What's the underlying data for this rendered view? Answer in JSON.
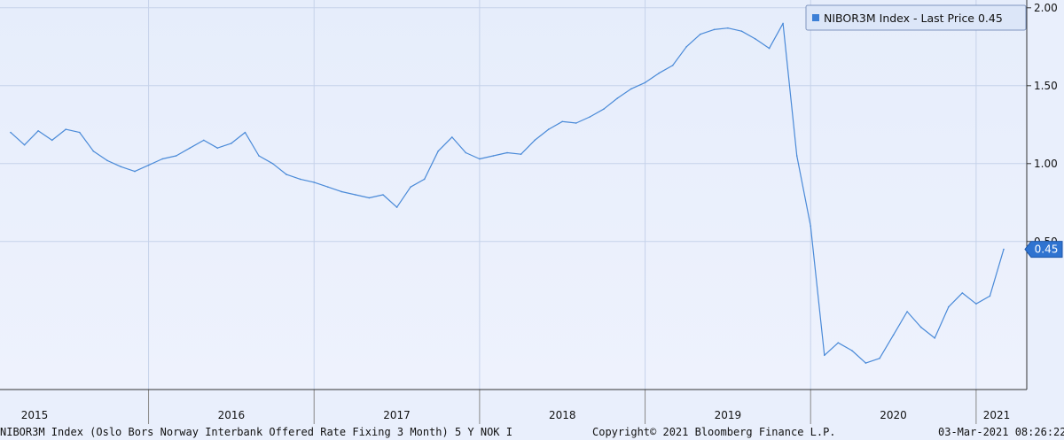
{
  "footer": {
    "description": "NIBOR3M Index (Oslo Bors Norway Interbank Offered Rate Fixing 3 Month) 5 Y NOK I",
    "copyright": "Copyright© 2021 Bloomberg Finance L.P.",
    "timestamp": "03-Mar-2021 08:26:22"
  },
  "chart_data": {
    "type": "line",
    "legend": {
      "label": "NIBOR3M Index - Last Price 0.45",
      "position": "top-right",
      "color": "#3c7fd6"
    },
    "last_price_badge": "0.45",
    "x_axis": {
      "tick_labels": [
        "2015",
        "2016",
        "2017",
        "2018",
        "2019",
        "2020",
        "2021"
      ],
      "range": [
        "2015-03",
        "2021-03"
      ]
    },
    "y_axis": {
      "side": "right",
      "range": [
        -0.45,
        2.05
      ],
      "ticks": [
        0.5,
        1.0,
        1.5,
        2.0
      ],
      "tick_labels": [
        "0.50",
        "1.00",
        "1.50",
        "2.00"
      ]
    },
    "grid": true,
    "line_color": "#4a8ad8",
    "series": [
      {
        "x": [
          "2015-03",
          "2015-04",
          "2015-05",
          "2015-06",
          "2015-07",
          "2015-08",
          "2015-09",
          "2015-10",
          "2015-11",
          "2015-12",
          "2016-01",
          "2016-02",
          "2016-03",
          "2016-04",
          "2016-05",
          "2016-06",
          "2016-07",
          "2016-08",
          "2016-09",
          "2016-10",
          "2016-11",
          "2016-12",
          "2017-01",
          "2017-02",
          "2017-03",
          "2017-04",
          "2017-05",
          "2017-06",
          "2017-07",
          "2017-08",
          "2017-09",
          "2017-10",
          "2017-11",
          "2017-12",
          "2018-01",
          "2018-02",
          "2018-03",
          "2018-04",
          "2018-05",
          "2018-06",
          "2018-07",
          "2018-08",
          "2018-09",
          "2018-10",
          "2018-11",
          "2018-12",
          "2019-01",
          "2019-02",
          "2019-03",
          "2019-04",
          "2019-05",
          "2019-06",
          "2019-07",
          "2019-08",
          "2019-09",
          "2019-10",
          "2019-11",
          "2019-12",
          "2020-01",
          "2020-02",
          "2020-03",
          "2020-04",
          "2020-05",
          "2020-06",
          "2020-07",
          "2020-08",
          "2020-09",
          "2020-10",
          "2020-11",
          "2020-12",
          "2021-01",
          "2021-02",
          "2021-03"
        ],
        "values": [
          1.2,
          1.12,
          1.21,
          1.15,
          1.22,
          1.2,
          1.08,
          1.02,
          0.98,
          0.95,
          0.99,
          1.03,
          1.05,
          1.1,
          1.15,
          1.1,
          1.13,
          1.2,
          1.05,
          1.0,
          0.93,
          0.9,
          0.88,
          0.85,
          0.82,
          0.8,
          0.78,
          0.8,
          0.72,
          0.85,
          0.9,
          1.08,
          1.17,
          1.07,
          1.03,
          1.05,
          1.07,
          1.06,
          1.15,
          1.22,
          1.27,
          1.26,
          1.3,
          1.35,
          1.42,
          1.48,
          1.52,
          1.58,
          1.63,
          1.75,
          1.83,
          1.86,
          1.87,
          1.85,
          1.8,
          1.74,
          1.9,
          1.05,
          0.6,
          -0.23,
          -0.15,
          -0.2,
          -0.28,
          -0.25,
          -0.1,
          0.05,
          -0.05,
          -0.12,
          0.08,
          0.17,
          0.1,
          0.15,
          0.45
        ]
      }
    ]
  }
}
